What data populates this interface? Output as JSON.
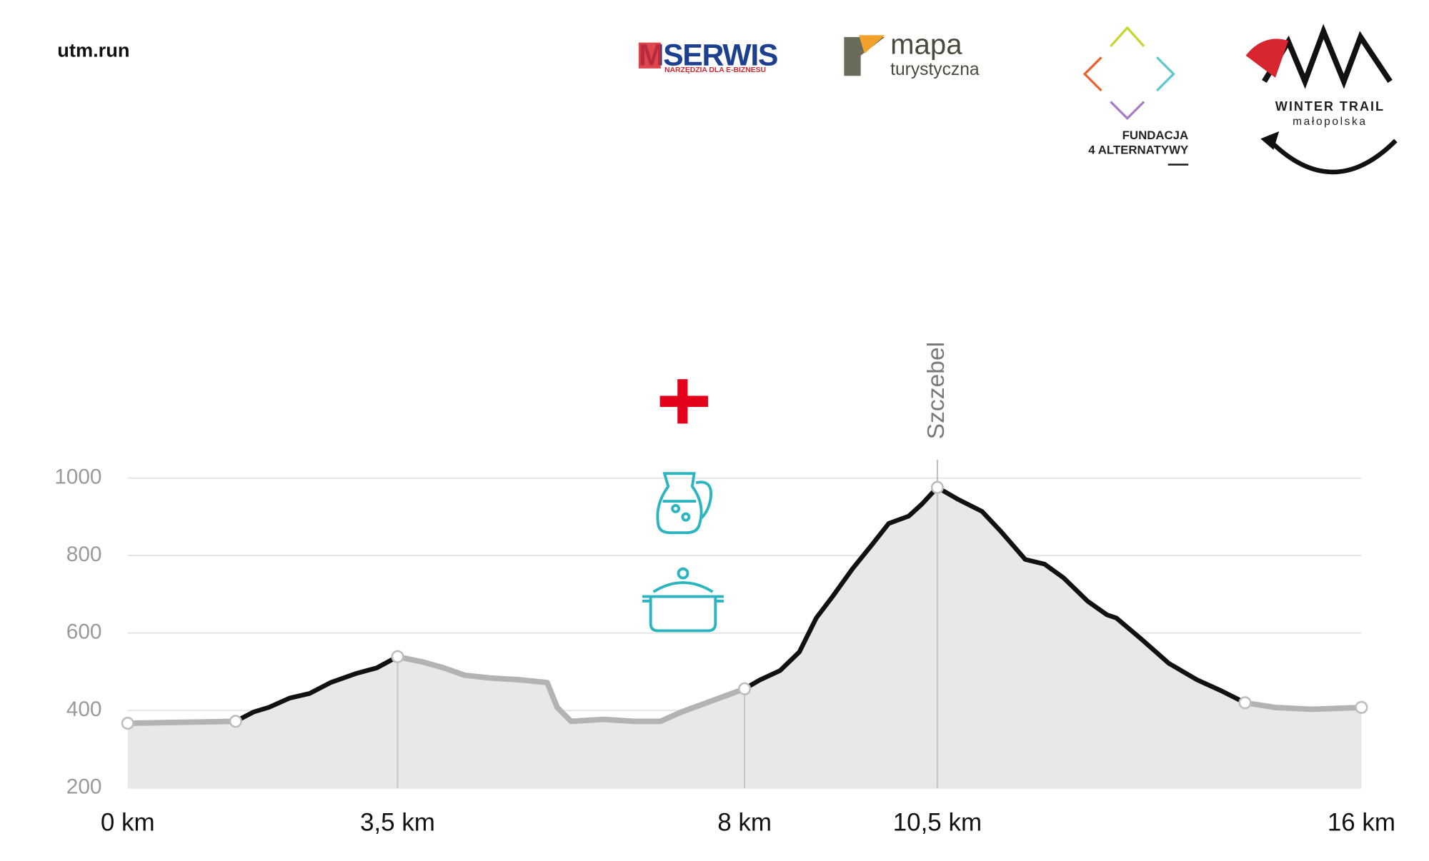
{
  "header": {
    "site": "utm.run",
    "logos": [
      {
        "name": "MSERWIS",
        "tagline": "NARZĘDZIA DLA E-BIZNESU"
      },
      {
        "name": "mapa",
        "tagline": "turystyczna"
      },
      {
        "name": "FUNDACJA",
        "tagline": "4 ALTERNATYWY"
      },
      {
        "name": "WINTER TRAIL",
        "tagline": "małopolska"
      }
    ]
  },
  "chart_data": {
    "type": "line",
    "x": [
      0,
      1.4,
      1.63,
      1.83,
      2.1,
      2.36,
      2.63,
      2.97,
      3.23,
      3.5,
      3.83,
      4.1,
      4.37,
      4.7,
      5.1,
      5.44,
      5.57,
      5.75,
      6.17,
      6.57,
      6.91,
      7.18,
      7.51,
      8,
      8.2,
      8.46,
      8.71,
      8.93,
      9.14,
      9.4,
      9.66,
      9.87,
      10.13,
      10.3,
      10.5,
      10.77,
      11.08,
      11.33,
      11.64,
      11.89,
      12.14,
      12.45,
      12.7,
      12.82,
      13.13,
      13.5,
      13.87,
      14.18,
      14.49,
      14.87,
      15.36,
      16
    ],
    "series": [
      {
        "color": "#b3b3b3",
        "values": [
          367,
          372,
          null,
          null,
          null,
          null,
          null,
          null,
          null,
          539,
          525,
          510,
          491,
          484,
          479,
          472,
          408,
          372,
          377,
          372,
          372,
          396,
          420,
          456,
          null,
          null,
          null,
          null,
          null,
          null,
          null,
          null,
          null,
          null,
          null,
          null,
          null,
          null,
          null,
          null,
          null,
          null,
          null,
          null,
          null,
          null,
          null,
          null,
          420,
          408,
          403,
          408
        ]
      },
      {
        "color": "#111111",
        "values": [
          null,
          372,
          396,
          408,
          432,
          444,
          472,
          496,
          510,
          539,
          null,
          null,
          null,
          null,
          null,
          null,
          null,
          null,
          null,
          null,
          null,
          null,
          null,
          456,
          479,
          503,
          551,
          639,
          694,
          766,
          830,
          883,
          902,
          933,
          976,
          945,
          914,
          861,
          790,
          778,
          742,
          682,
          647,
          639,
          587,
          522,
          479,
          451,
          420,
          null,
          null,
          null
        ]
      }
    ],
    "fill_color": "#e8e8e8",
    "markers": [
      0,
      1,
      9,
      23,
      34,
      48,
      51
    ],
    "drop_lines": [
      9,
      23,
      34
    ],
    "annotations": [
      {
        "text": "Szczebel",
        "at": 34
      }
    ],
    "xlim": [
      0,
      16
    ],
    "xticks": [
      {
        "value": 0,
        "label": "0 km"
      },
      {
        "value": 3.5,
        "label": "3,5 km"
      },
      {
        "value": 8,
        "label": "8 km"
      },
      {
        "value": 10.5,
        "label": "10,5 km"
      },
      {
        "value": 16,
        "label": "16 km"
      }
    ],
    "ylim": [
      200,
      1000
    ],
    "yticks": [
      200,
      400,
      600,
      800,
      1000
    ],
    "grid": true
  }
}
